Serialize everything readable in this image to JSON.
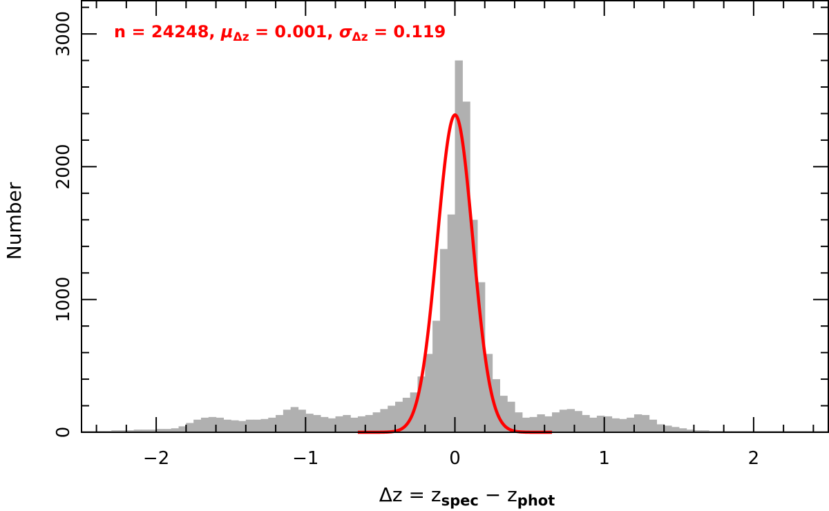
{
  "chart_data": {
    "type": "bar",
    "title": "",
    "xlabel": "Δz = z_spec − z_phot",
    "xlabel_parts": {
      "main": "Δz = z",
      "sub1": "spec",
      "mid": " − z",
      "sub2": "phot"
    },
    "ylabel": "Number",
    "xlim": [
      -2.5,
      2.5
    ],
    "ylim": [
      0,
      3250
    ],
    "x_ticks": [
      -2,
      -1,
      0,
      1,
      2
    ],
    "x_tick_labels": [
      "−2",
      "−1",
      "0",
      "1",
      "2"
    ],
    "y_ticks": [
      0,
      1000,
      2000,
      3000
    ],
    "y_tick_labels": [
      "0",
      "1000",
      "2000",
      "3000"
    ],
    "grid": false,
    "annotation": {
      "text_prefix": "n = 24248, ",
      "mu_symbol": "μ",
      "mu_sub": "Δz",
      "mu_value": " = 0.001, ",
      "sigma_symbol": "σ",
      "sigma_sub": "Δz",
      "sigma_value": " = 0.119",
      "color": "#ff0000"
    },
    "series": [
      {
        "type": "histogram",
        "color": "#b0b0b0",
        "bin_width": 0.05,
        "bin_start": -2.5,
        "values": [
          10,
          10,
          10,
          10,
          15,
          15,
          15,
          20,
          20,
          20,
          25,
          25,
          30,
          45,
          70,
          95,
          110,
          115,
          110,
          95,
          90,
          85,
          95,
          95,
          100,
          110,
          130,
          170,
          190,
          170,
          140,
          130,
          115,
          105,
          120,
          130,
          110,
          120,
          130,
          150,
          175,
          200,
          230,
          260,
          300,
          420,
          590,
          840,
          1380,
          1640,
          2800,
          2490,
          1600,
          1130,
          590,
          400,
          275,
          230,
          150,
          110,
          115,
          135,
          120,
          150,
          170,
          175,
          160,
          130,
          110,
          125,
          120,
          105,
          100,
          110,
          135,
          130,
          95,
          60,
          50,
          40,
          30,
          20,
          15,
          15,
          10,
          10,
          10,
          10,
          10,
          10,
          10,
          10,
          10,
          10,
          10,
          10,
          10,
          10,
          10,
          10
        ]
      },
      {
        "type": "gaussian-fit",
        "color": "#ff0000",
        "mu": 0.001,
        "sigma": 0.119,
        "amplitude": 2390,
        "x_range": [
          -0.65,
          0.65
        ]
      }
    ]
  }
}
